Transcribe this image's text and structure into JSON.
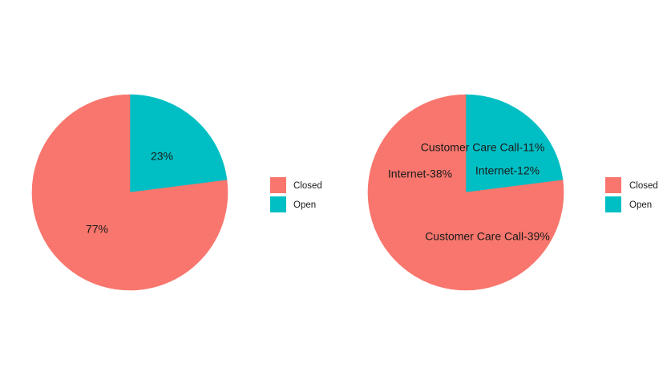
{
  "colors": {
    "Closed": "#F8766D",
    "Open": "#00BFC4"
  },
  "chart_data": [
    {
      "type": "pie",
      "title": "",
      "slices": [
        {
          "label": "23%",
          "status": "Open",
          "value": 23
        },
        {
          "label": "77%",
          "status": "Closed",
          "value": 77
        }
      ],
      "legend": {
        "position": "right",
        "entries": [
          "Closed",
          "Open"
        ]
      }
    },
    {
      "type": "pie",
      "title": "",
      "slices": [
        {
          "label": "Customer Care Call-11%",
          "status": "Open",
          "value": 11
        },
        {
          "label": "Internet-12%",
          "status": "Open",
          "value": 12
        },
        {
          "label": "Customer Care Call-39%",
          "status": "Closed",
          "value": 39
        },
        {
          "label": "Internet-38%",
          "status": "Closed",
          "value": 38
        }
      ],
      "legend": {
        "position": "right",
        "entries": [
          "Closed",
          "Open"
        ]
      }
    }
  ]
}
